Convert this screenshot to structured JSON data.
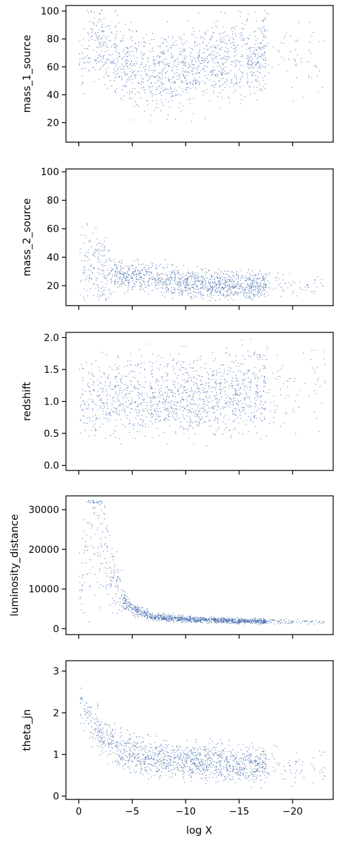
{
  "chart_data": {
    "type": "scatter",
    "layout": "5 vertically stacked panels sharing x-axis (inverted)",
    "xlabel": "log X",
    "xlim": [
      1.2,
      -23.8
    ],
    "xticks": [
      0,
      -5,
      -10,
      -15,
      -20
    ],
    "xtick_labels": [
      "0",
      "−5",
      "−10",
      "−15",
      "−20"
    ],
    "point_color": "#4c72b0",
    "grid": false,
    "panels": [
      {
        "ylabel": "mass_1_source",
        "ylim": [
          6,
          104
        ],
        "yticks": [
          20,
          40,
          60,
          80,
          100
        ],
        "ytick_labels": [
          "20",
          "40",
          "60",
          "80",
          "100"
        ],
        "trend": [
          [
            0,
            62
          ],
          [
            -1,
            80
          ],
          [
            -2,
            75
          ],
          [
            -4,
            65
          ],
          [
            -6,
            55
          ],
          [
            -8,
            56
          ],
          [
            -10,
            58
          ],
          [
            -12,
            62
          ],
          [
            -14,
            65
          ],
          [
            -16,
            68
          ],
          [
            -18,
            72
          ],
          [
            -22,
            65
          ]
        ]
      },
      {
        "ylabel": "mass_2_source",
        "ylim": [
          6,
          102
        ],
        "yticks": [
          20,
          40,
          60,
          80,
          100
        ],
        "ytick_labels": [
          "20",
          "40",
          "60",
          "80",
          "100"
        ],
        "trend": [
          [
            0,
            30
          ],
          [
            -1,
            40
          ],
          [
            -2,
            30
          ],
          [
            -4,
            28
          ],
          [
            -6,
            26
          ],
          [
            -8,
            24
          ],
          [
            -10,
            22
          ],
          [
            -12,
            21
          ],
          [
            -14,
            20
          ],
          [
            -16,
            20
          ],
          [
            -18,
            22
          ],
          [
            -22,
            22
          ]
        ]
      },
      {
        "ylabel": "redshift",
        "ylim": [
          -0.08,
          2.08
        ],
        "yticks": [
          0.0,
          0.5,
          1.0,
          1.5,
          2.0
        ],
        "ytick_labels": [
          "0.0",
          "0.5",
          "1.0",
          "1.5",
          "2.0"
        ],
        "trend": [
          [
            0,
            1.0
          ],
          [
            -4,
            1.05
          ],
          [
            -8,
            1.1
          ],
          [
            -12,
            1.1
          ],
          [
            -16,
            1.15
          ],
          [
            -20,
            1.2
          ]
        ]
      },
      {
        "ylabel": "luminosity_distance",
        "ylim": [
          -1500,
          33500
        ],
        "yticks": [
          0,
          10000,
          20000,
          30000
        ],
        "ytick_labels": [
          "0",
          "10000",
          "20000",
          "30000"
        ],
        "trend": [
          [
            0,
            10000
          ],
          [
            -1,
            25000
          ],
          [
            -2,
            24000
          ],
          [
            -3,
            15000
          ],
          [
            -4,
            8000
          ],
          [
            -5,
            5000
          ],
          [
            -7,
            3000
          ],
          [
            -10,
            2500
          ],
          [
            -15,
            2000
          ],
          [
            -20,
            1900
          ],
          [
            -22,
            1800
          ]
        ]
      },
      {
        "ylabel": "theta_jn",
        "ylim": [
          -0.08,
          3.25
        ],
        "yticks": [
          0,
          1,
          2,
          3
        ],
        "ytick_labels": [
          "0",
          "1",
          "2",
          "3"
        ],
        "trend": [
          [
            0,
            2.2
          ],
          [
            -1,
            1.8
          ],
          [
            -2,
            1.5
          ],
          [
            -4,
            1.1
          ],
          [
            -6,
            0.95
          ],
          [
            -8,
            0.9
          ],
          [
            -10,
            0.85
          ],
          [
            -12,
            0.82
          ],
          [
            -14,
            0.78
          ],
          [
            -16,
            0.75
          ],
          [
            -18,
            0.72
          ],
          [
            -22,
            0.72
          ]
        ]
      }
    ]
  }
}
